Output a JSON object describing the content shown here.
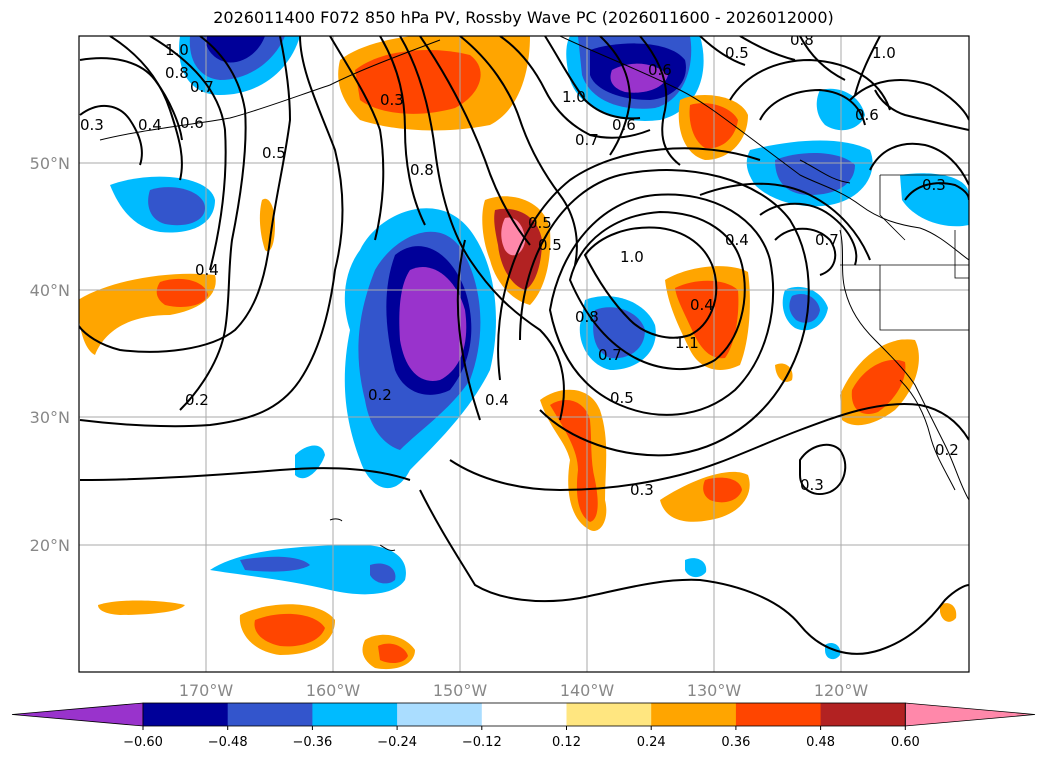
{
  "title": "2026011400 F072 850 hPa PV, Rossby Wave PC (2026011600 - 2026012000)",
  "lat_labels": [
    "50°N",
    "40°N",
    "30°N",
    "20°N"
  ],
  "lon_labels": [
    "170°W",
    "160°W",
    "150°W",
    "140°W",
    "130°W",
    "120°W"
  ],
  "colorbar": {
    "ticks": [
      "−0.60",
      "−0.48",
      "−0.36",
      "−0.24",
      "−0.12",
      "0.12",
      "0.24",
      "0.36",
      "0.48",
      "0.60"
    ],
    "colors": [
      "#9933cc",
      "#000099",
      "#3355cc",
      "#00bbff",
      "#aaddff",
      "#ffffff",
      "#ffe680",
      "#ffa500",
      "#ff4500",
      "#b22222",
      "#ff88aa"
    ]
  },
  "contour_labels": [
    "1.0",
    "0.8",
    "0.7",
    "0.3",
    "0.4",
    "0.6",
    "0.5",
    "0.3",
    "0.8",
    "1.0",
    "0.5",
    "0.7",
    "0.6",
    "0.6",
    "1.0",
    "0.8",
    "0.5",
    "0.4",
    "0.7",
    "0.6",
    "0.3",
    "0.4",
    "1.0",
    "0.5",
    "0.8",
    "0.7",
    "1.1",
    "0.4",
    "0.2",
    "0.5",
    "0.3",
    "0.3",
    "0.2",
    "0.2",
    "0.4"
  ],
  "chart_data": {
    "type": "heatmap",
    "title": "2026011400 F072 850 hPa PV, Rossby Wave PC (2026011600 - 2026012000)",
    "lon_range": [
      -180,
      -110
    ],
    "lat_range": [
      10,
      60
    ],
    "contour_variable": "850 hPa PV",
    "shading_variable": "Rossby Wave PC",
    "color_levels": [
      -0.6,
      -0.48,
      -0.36,
      -0.24,
      -0.12,
      0.12,
      0.24,
      0.36,
      0.48,
      0.6
    ],
    "extend": "both",
    "grid": true
  }
}
